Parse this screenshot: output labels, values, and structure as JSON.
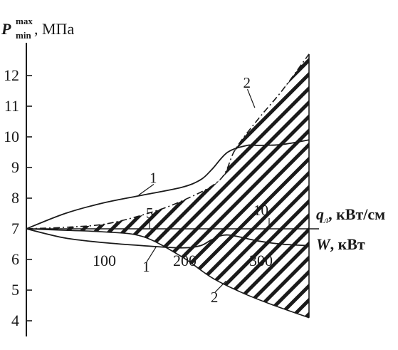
{
  "chart_data": {
    "type": "line",
    "title": "",
    "ylabel": {
      "symbol": "P",
      "superscript": "max",
      "subscript": "min",
      "unit": ", МПа"
    },
    "ylim": [
      4,
      12.7
    ],
    "yticks": [
      4,
      5,
      6,
      7,
      8,
      9,
      10,
      11,
      12
    ],
    "x_axis_W": {
      "label_symbol": "W",
      "label_unit": ", кВт",
      "ticks": [
        "100",
        "200",
        "300"
      ],
      "range": [
        0,
        370
      ]
    },
    "x_axis_q": {
      "label_symbol": "q",
      "label_sub": "л",
      "label_unit": ", кВт/см",
      "ticks": [
        "5",
        "10"
      ],
      "range": [
        0,
        12.3
      ]
    },
    "series": [
      {
        "curve": "1",
        "role": "upper",
        "x": [
          0,
          50,
          100,
          150,
          200,
          225,
          240,
          260,
          285,
          300,
          330,
          365
        ],
        "y": [
          7.0,
          7.5,
          7.85,
          8.1,
          8.35,
          8.6,
          8.95,
          9.5,
          9.72,
          9.72,
          9.75,
          9.9
        ]
      },
      {
        "curve": "1",
        "role": "lower",
        "x": [
          0,
          50,
          100,
          150,
          200,
          225,
          240,
          260,
          300,
          330,
          365
        ],
        "y": [
          7.0,
          6.7,
          6.55,
          6.45,
          6.38,
          6.45,
          6.65,
          6.8,
          6.6,
          6.5,
          6.45
        ]
      },
      {
        "curve": "2",
        "role": "upper",
        "x": [
          0,
          50,
          100,
          150,
          200,
          250,
          270,
          300,
          330,
          365
        ],
        "y": [
          7.0,
          7.05,
          7.15,
          7.45,
          7.9,
          8.6,
          9.6,
          10.6,
          11.5,
          12.7
        ]
      },
      {
        "curve": "2",
        "role": "lower",
        "x": [
          0,
          50,
          100,
          150,
          200,
          240,
          280,
          320,
          365
        ],
        "y": [
          7.0,
          6.95,
          6.9,
          6.75,
          6.1,
          5.4,
          4.9,
          4.5,
          4.1
        ]
      }
    ],
    "annotations": [
      {
        "text": "1",
        "x": 159,
        "y": 8.5,
        "points_to": {
          "x": 145,
          "y": 8.1
        }
      },
      {
        "text": "1",
        "x": 150,
        "y": 5.6,
        "points_to": {
          "x": 168,
          "y": 6.43
        }
      },
      {
        "text": "2",
        "x": 280,
        "y": 11.6,
        "points_to": {
          "x": 295,
          "y": 10.95
        }
      },
      {
        "text": "2",
        "x": 238,
        "y": 4.6,
        "points_to": {
          "x": 258,
          "y": 5.3
        }
      }
    ],
    "hatched_region": "between curve 2 upper and curve 2 lower",
    "grid": false,
    "legend": "none"
  }
}
